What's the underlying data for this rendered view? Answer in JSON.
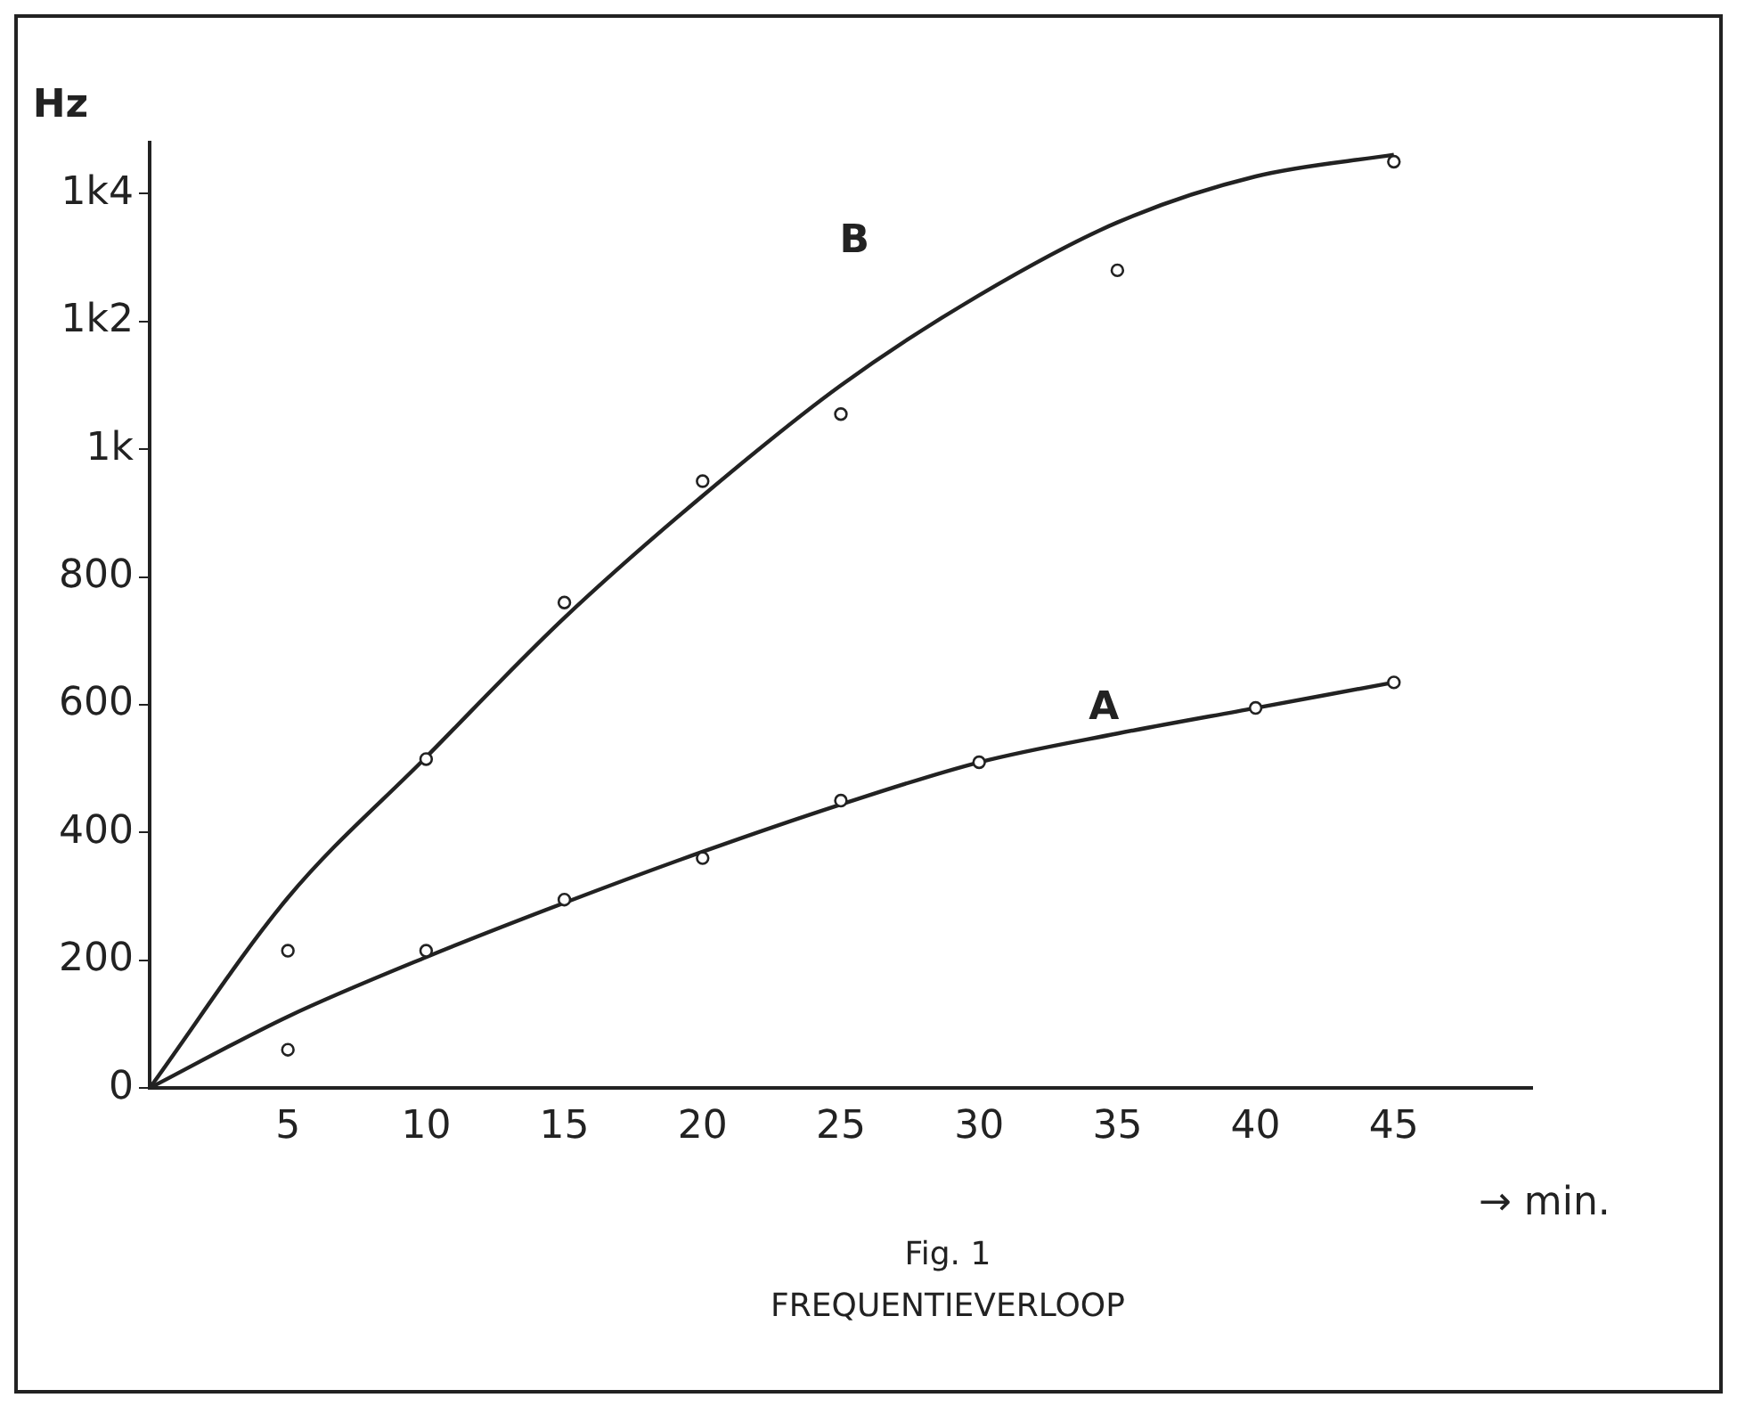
{
  "chart_data": {
    "type": "line",
    "title": "FREQUENTIEVERLOOP",
    "subtitle": "Fig. 1",
    "xlabel": "→ min.",
    "ylabel": "Hz",
    "xlim": [
      0,
      50
    ],
    "xticks": [
      5,
      10,
      15,
      20,
      25,
      30,
      35,
      40,
      45
    ],
    "ylim": [
      0,
      1480
    ],
    "yticks": [
      0,
      200,
      400,
      600,
      800,
      {
        "value": 1000,
        "label": "1k"
      },
      {
        "value": 1200,
        "label": "1k2"
      },
      {
        "value": 1400,
        "label": "1k4"
      }
    ],
    "grid": false,
    "legend": false,
    "series": [
      {
        "type": "scatter",
        "marker": "circle",
        "color": "#222222",
        "x": [
          5,
          10,
          15,
          20,
          25,
          30,
          40,
          45
        ],
        "values": [
          60,
          215,
          295,
          360,
          450,
          510,
          595,
          635
        ]
      },
      {
        "type": "scatter",
        "marker": "circle",
        "color": "#222222",
        "x": [
          5,
          10,
          15,
          20,
          25,
          35,
          45
        ],
        "values": [
          215,
          515,
          760,
          950,
          1055,
          1280,
          1450
        ]
      },
      {
        "name": "A",
        "marker": "none",
        "color": "#222222",
        "x": [
          0,
          5,
          10,
          15,
          20,
          25,
          30,
          35,
          40,
          45
        ],
        "values": [
          0,
          112,
          205,
          290,
          370,
          444,
          510,
          555,
          595,
          635
        ]
      },
      {
        "name": "B",
        "marker": "none",
        "color": "#222222",
        "x": [
          0,
          5,
          10,
          15,
          20,
          25,
          30,
          35,
          40,
          45
        ],
        "values": [
          0,
          298,
          518,
          736,
          927,
          1100,
          1241,
          1355,
          1427,
          1461
        ]
      }
    ]
  }
}
